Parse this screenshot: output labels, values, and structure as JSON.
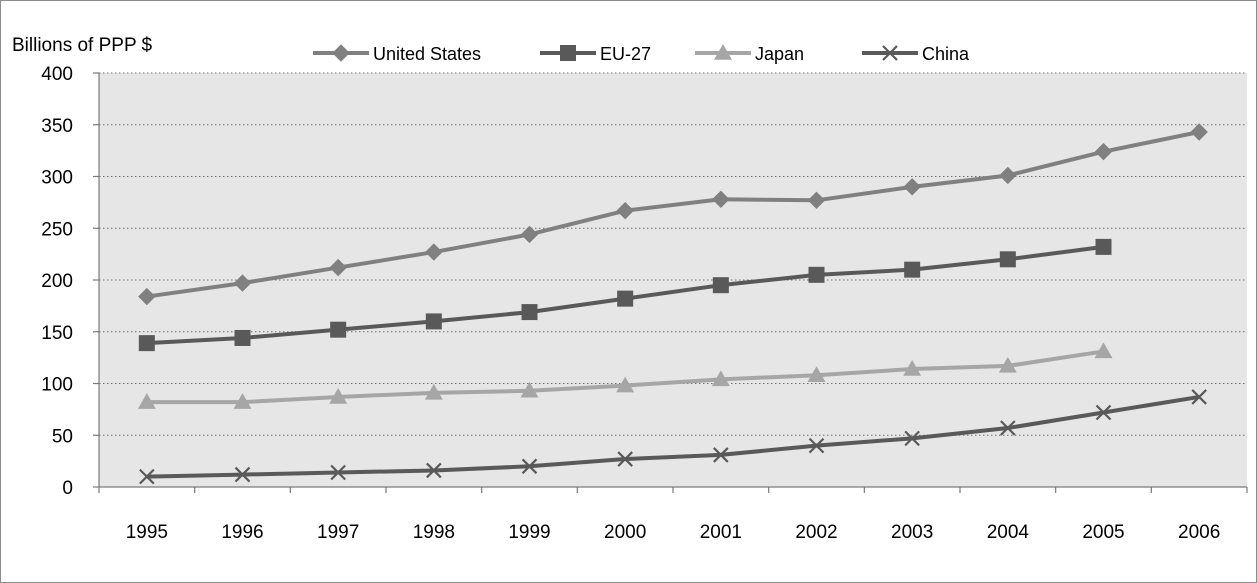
{
  "chart_data": {
    "type": "line",
    "ylabel": "Billions of PPP $",
    "xlabel": "",
    "ylim": [
      0,
      400
    ],
    "yticks": [
      0,
      50,
      100,
      150,
      200,
      250,
      300,
      350,
      400
    ],
    "x": [
      "1995",
      "1996",
      "1997",
      "1998",
      "1999",
      "2000",
      "2001",
      "2002",
      "2003",
      "2004",
      "2005",
      "2006"
    ],
    "grid": true,
    "legend_position": "top",
    "series": [
      {
        "name": "United States",
        "color": "#808080",
        "marker": "diamond",
        "values": [
          184,
          197,
          212,
          227,
          244,
          267,
          278,
          277,
          290,
          301,
          324,
          343
        ]
      },
      {
        "name": "EU-27",
        "color": "#595959",
        "marker": "square",
        "values": [
          139,
          144,
          152,
          160,
          169,
          182,
          195,
          205,
          210,
          220,
          232,
          null
        ]
      },
      {
        "name": "Japan",
        "color": "#a6a6a6",
        "marker": "triangle",
        "values": [
          82,
          82,
          87,
          91,
          93,
          98,
          104,
          108,
          114,
          117,
          131,
          null
        ]
      },
      {
        "name": "China",
        "color": "#595959",
        "marker": "x",
        "values": [
          10,
          12,
          14,
          16,
          20,
          27,
          31,
          40,
          47,
          57,
          72,
          87
        ]
      }
    ]
  }
}
